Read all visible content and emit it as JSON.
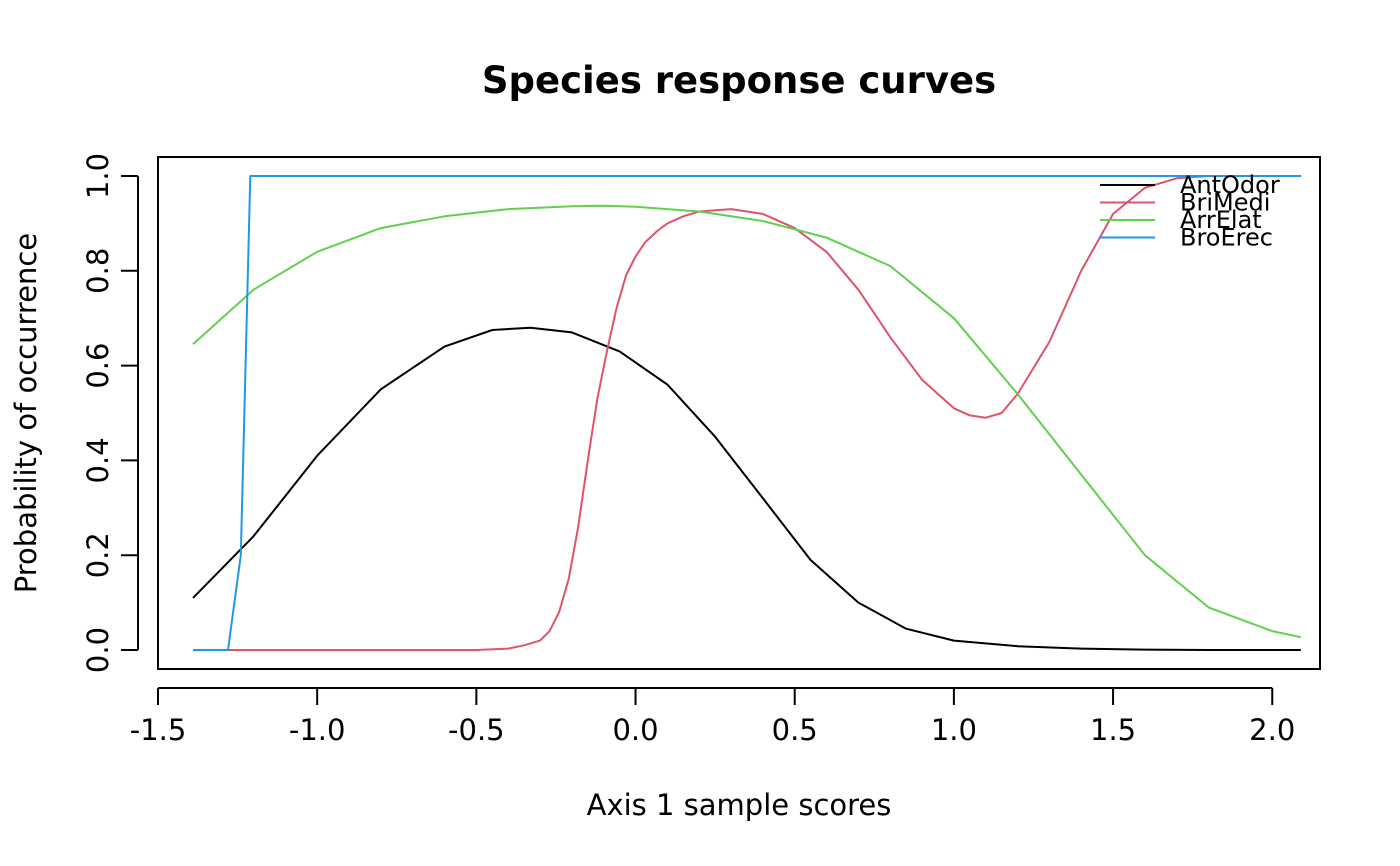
{
  "chart_data": {
    "type": "line",
    "title": "Species response curves",
    "xlabel": "Axis 1 sample scores",
    "ylabel": "Probability of occurrence",
    "xlim": [
      -1.5,
      2.15
    ],
    "ylim": [
      -0.04,
      1.04
    ],
    "xticks": [
      -1.5,
      -1.0,
      -0.5,
      0.0,
      0.5,
      1.0,
      1.5,
      2.0
    ],
    "xtick_labels": [
      "-1.5",
      "-1.0",
      "-0.5",
      "0.0",
      "0.5",
      "1.0",
      "1.5",
      "2.0"
    ],
    "yticks": [
      0.0,
      0.2,
      0.4,
      0.6,
      0.8,
      1.0
    ],
    "ytick_labels": [
      "0.0",
      "0.2",
      "0.4",
      "0.6",
      "0.8",
      "1.0"
    ],
    "grid": false,
    "legend_position": "top-right",
    "series": [
      {
        "name": "AntOdor",
        "color": "#000000",
        "x": [
          -1.39,
          -1.2,
          -1.0,
          -0.8,
          -0.6,
          -0.45,
          -0.33,
          -0.2,
          -0.05,
          0.1,
          0.25,
          0.4,
          0.55,
          0.7,
          0.85,
          1.0,
          1.2,
          1.4,
          1.6,
          1.8,
          2.09
        ],
        "y": [
          0.11,
          0.24,
          0.41,
          0.55,
          0.64,
          0.675,
          0.68,
          0.67,
          0.63,
          0.56,
          0.45,
          0.32,
          0.19,
          0.1,
          0.045,
          0.02,
          0.008,
          0.003,
          0.001,
          0.0,
          0.0
        ]
      },
      {
        "name": "BriMedi",
        "color": "#DF536B",
        "x": [
          -1.39,
          -1.0,
          -0.5,
          -0.4,
          -0.35,
          -0.3,
          -0.27,
          -0.24,
          -0.21,
          -0.18,
          -0.15,
          -0.12,
          -0.09,
          -0.06,
          -0.03,
          0.0,
          0.03,
          0.07,
          0.1,
          0.15,
          0.2,
          0.3,
          0.4,
          0.5,
          0.6,
          0.7,
          0.8,
          0.9,
          1.0,
          1.05,
          1.1,
          1.15,
          1.2,
          1.3,
          1.4,
          1.5,
          1.6,
          1.7,
          1.8,
          1.9,
          2.09
        ],
        "y": [
          0.0,
          0.0,
          0.0,
          0.003,
          0.01,
          0.02,
          0.04,
          0.08,
          0.15,
          0.26,
          0.4,
          0.53,
          0.63,
          0.72,
          0.79,
          0.83,
          0.86,
          0.885,
          0.9,
          0.915,
          0.925,
          0.93,
          0.92,
          0.89,
          0.84,
          0.76,
          0.66,
          0.57,
          0.51,
          0.495,
          0.49,
          0.5,
          0.54,
          0.65,
          0.8,
          0.92,
          0.975,
          0.995,
          1.0,
          1.0,
          1.0
        ]
      },
      {
        "name": "ArrElat",
        "color": "#61D04F",
        "x": [
          -1.39,
          -1.2,
          -1.0,
          -0.8,
          -0.6,
          -0.4,
          -0.2,
          -0.1,
          0.0,
          0.2,
          0.4,
          0.6,
          0.8,
          1.0,
          1.2,
          1.4,
          1.6,
          1.8,
          2.0,
          2.09
        ],
        "y": [
          0.645,
          0.76,
          0.84,
          0.89,
          0.915,
          0.93,
          0.936,
          0.937,
          0.935,
          0.925,
          0.905,
          0.87,
          0.81,
          0.7,
          0.54,
          0.37,
          0.2,
          0.09,
          0.04,
          0.027
        ]
      },
      {
        "name": "BroErec",
        "color": "#2297E6",
        "x": [
          -1.39,
          -1.28,
          -1.24,
          -1.21,
          -1.0,
          0.0,
          1.0,
          2.09
        ],
        "y": [
          0.0,
          0.0,
          0.2,
          1.0,
          1.0,
          1.0,
          1.0,
          1.0
        ]
      }
    ]
  }
}
